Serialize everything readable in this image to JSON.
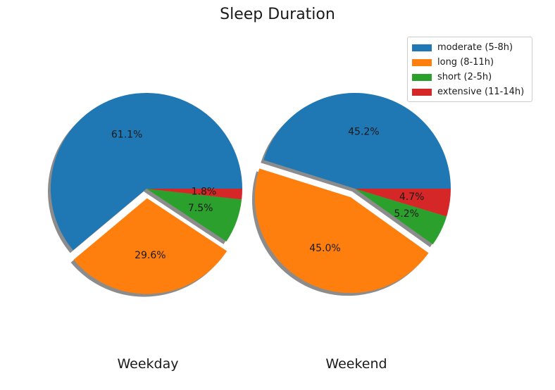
{
  "title": "Sleep Duration",
  "chart_data": {
    "type": "pie",
    "title": "Sleep Duration",
    "categories": [
      "moderate (5-8h)",
      "long (8-11h)",
      "short (2-5h)",
      "extensive (11-14h)"
    ],
    "colors": [
      "#1f77b4",
      "#ff7f0e",
      "#2ca02c",
      "#d62728"
    ],
    "legend_position": "top-right",
    "shadow": true,
    "start_angle": 0,
    "direction": "counterclockwise",
    "pies": [
      {
        "name": "Weekday",
        "values": [
          61.1,
          29.6,
          7.5,
          1.8
        ],
        "labels": [
          "61.1%",
          "29.6%",
          "7.5%",
          "1.8%"
        ],
        "explode": [
          0,
          0.1,
          0,
          0
        ]
      },
      {
        "name": "Weekend",
        "values": [
          45.2,
          45.0,
          5.2,
          4.7
        ],
        "labels": [
          "45.2%",
          "45.0%",
          "5.2%",
          "4.7%"
        ],
        "explode": [
          0,
          0.1,
          0,
          0
        ]
      }
    ]
  }
}
